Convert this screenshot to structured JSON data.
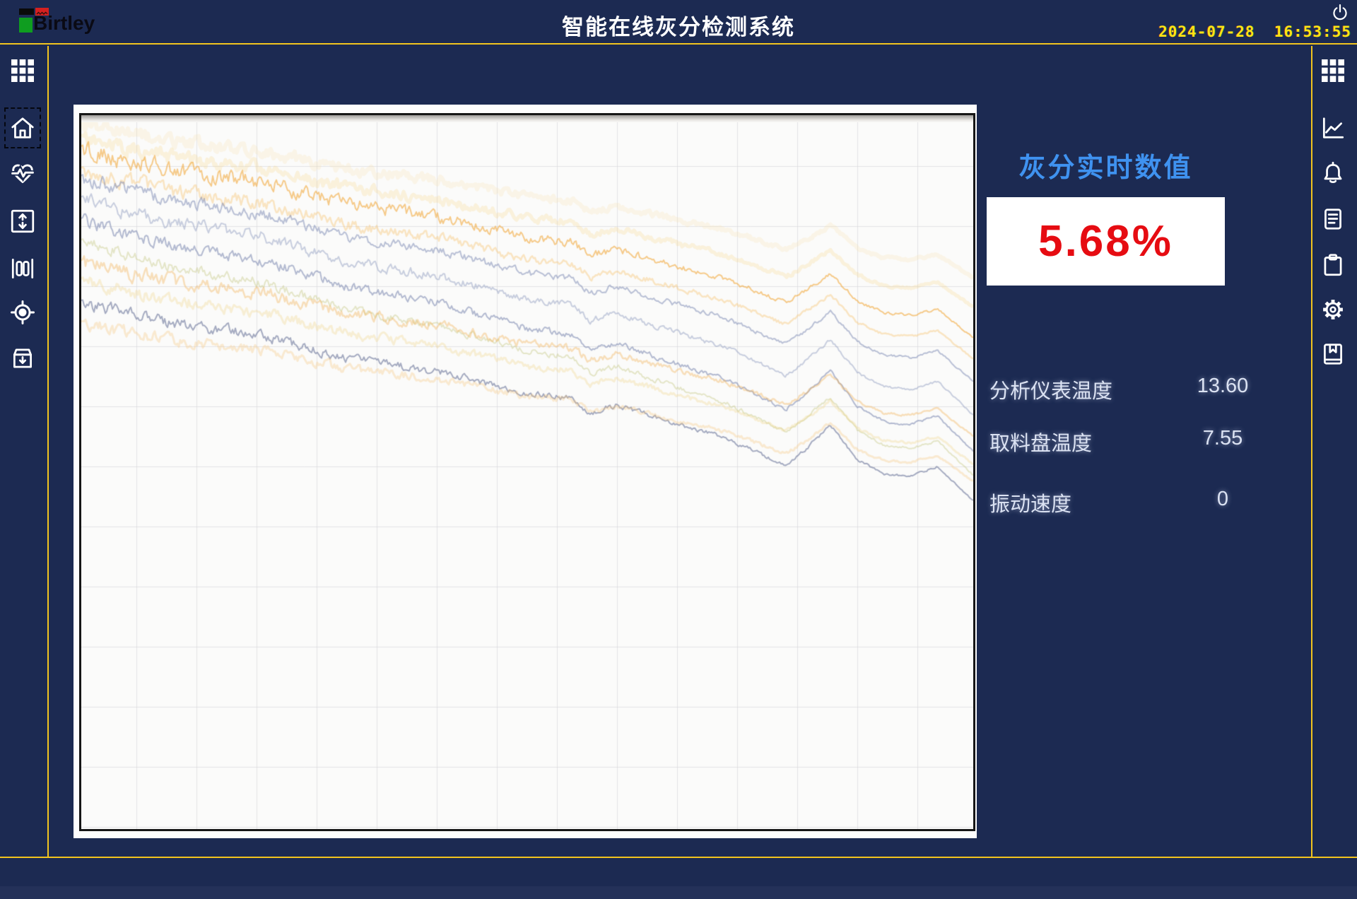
{
  "header": {
    "logo_text": "Birtley",
    "title": "智能在线灰分检测系统",
    "clock": "2024-07-28  16:53:55"
  },
  "left_sidebar": {
    "items": [
      {
        "name": "apps-grid-icon"
      },
      {
        "name": "home-icon",
        "selected": true
      },
      {
        "name": "heartbeat-icon"
      },
      {
        "name": "vertical-range-icon"
      },
      {
        "name": "columns-gauge-icon"
      },
      {
        "name": "target-icon"
      },
      {
        "name": "archive-in-icon"
      }
    ]
  },
  "right_sidebar": {
    "items": [
      {
        "name": "apps-grid-icon"
      },
      {
        "name": "trend-chart-icon"
      },
      {
        "name": "alarm-bell-icon"
      },
      {
        "name": "report-icon"
      },
      {
        "name": "clipboard-icon"
      },
      {
        "name": "settings-gear-icon"
      },
      {
        "name": "logbook-icon"
      }
    ]
  },
  "info_panel": {
    "title": "灰分实时数值",
    "value": "5.68%",
    "readings": [
      {
        "label": "分析仪表温度",
        "value": "13.60"
      },
      {
        "label": "取料盘温度",
        "value": "7.55"
      },
      {
        "label": "振动速度",
        "value": "0"
      }
    ]
  },
  "colors": {
    "background_navy": "#1c2a52",
    "frame_yellow": "#f2c41e",
    "clock_yellow": "#ffe315",
    "panel_title_blue": "#3f92f0",
    "value_red": "#e60c12",
    "value_box_bg": "#ffffff",
    "chart_bg": "#fbfbfa",
    "grid_gray": "#d2d2d6"
  },
  "chart_data": {
    "type": "line",
    "title": "",
    "axes_visible": false,
    "legend": false,
    "grid": true,
    "grid_spacing_px": 85,
    "x_range_percent": [
      0,
      100
    ],
    "y_unit": "percent of plot height, 0 = top",
    "note": "Unlabeled multi-series noisy trend; all series drift downward left-to-right with a dip near x=79%, a shared bump peak near x=84% and a final drop at x=100%.",
    "shape_x": [
      0,
      10,
      20,
      30,
      40,
      50,
      55,
      57,
      60,
      66,
      72,
      76,
      79,
      81,
      84,
      87,
      90,
      93,
      96,
      100
    ],
    "shape_offset": [
      0,
      0.3,
      -0.3,
      0.4,
      -0.2,
      0.3,
      -0.2,
      1.2,
      -0.4,
      0.3,
      0.8,
      1.8,
      2.6,
      0.6,
      -2.8,
      0.4,
      1.4,
      1.0,
      -0.6,
      2.4
    ],
    "series": [
      {
        "name": "yellow-band-top",
        "color": "#f8d98e",
        "alpha": 0.18,
        "width": 6,
        "y_start": 0.5,
        "y_end": 20,
        "feature_scale": 0.8,
        "noise": 1.2,
        "seed": 133
      },
      {
        "name": "yellow-band",
        "color": "#f6cc6e",
        "alpha": 0.22,
        "width": 5,
        "y_start": 2.5,
        "y_end": 24,
        "feature_scale": 0.9,
        "noise": 1.3,
        "seed": 11
      },
      {
        "name": "orange-main",
        "color": "#f0a22e",
        "alpha": 0.55,
        "width": 2,
        "y_start": 4,
        "y_end": 28,
        "feature_scale": 1.0,
        "noise": 1.6,
        "seed": 22
      },
      {
        "name": "orange-soft",
        "color": "#f5bb5a",
        "alpha": 0.35,
        "width": 2.5,
        "y_start": 7,
        "y_end": 31,
        "feature_scale": 1.0,
        "noise": 1.4,
        "seed": 33
      },
      {
        "name": "bluegray-1",
        "color": "#7786b2",
        "alpha": 0.5,
        "width": 2,
        "y_start": 8,
        "y_end": 34,
        "feature_scale": 1.1,
        "noise": 1.2,
        "seed": 44
      },
      {
        "name": "bluegray-2",
        "color": "#8a96bd",
        "alpha": 0.45,
        "width": 2,
        "y_start": 11,
        "y_end": 38.5,
        "feature_scale": 1.2,
        "noise": 1.2,
        "seed": 55
      },
      {
        "name": "bluegray-3",
        "color": "#6c7aa8",
        "alpha": 0.5,
        "width": 2,
        "y_start": 14,
        "y_end": 43.5,
        "feature_scale": 1.3,
        "noise": 1.1,
        "seed": 66
      },
      {
        "name": "olive",
        "color": "#c3c67c",
        "alpha": 0.4,
        "width": 2,
        "y_start": 17,
        "y_end": 47,
        "feature_scale": 1.2,
        "noise": 1.0,
        "seed": 77
      },
      {
        "name": "orange-2",
        "color": "#f3b35a",
        "alpha": 0.4,
        "width": 2.5,
        "y_start": 20,
        "y_end": 42,
        "feature_scale": 1.0,
        "noise": 1.3,
        "seed": 88
      },
      {
        "name": "pale-yellow",
        "color": "#eed27e",
        "alpha": 0.3,
        "width": 3,
        "y_start": 22.5,
        "y_end": 46,
        "feature_scale": 1.0,
        "noise": 1.1,
        "seed": 99
      },
      {
        "name": "slate-dark",
        "color": "#5e6a92",
        "alpha": 0.55,
        "width": 2,
        "y_start": 25.5,
        "y_end": 50.5,
        "feature_scale": 1.3,
        "noise": 1.0,
        "seed": 111
      },
      {
        "name": "orange-low",
        "color": "#f4bf70",
        "alpha": 0.3,
        "width": 3,
        "y_start": 28.5,
        "y_end": 48.5,
        "feature_scale": 1.0,
        "noise": 1.0,
        "seed": 122
      }
    ]
  }
}
